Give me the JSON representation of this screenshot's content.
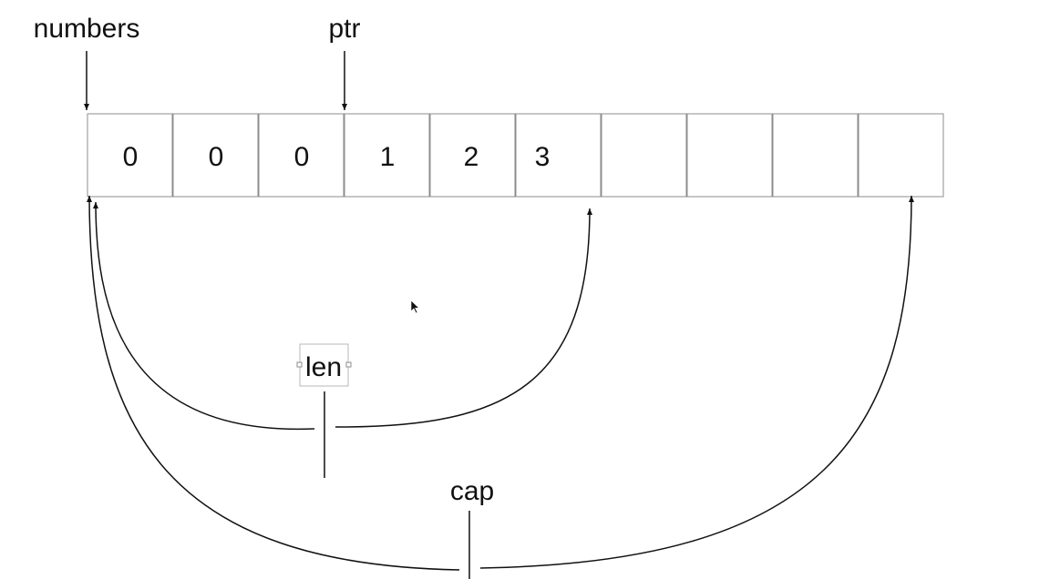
{
  "labels": {
    "numbers": "numbers",
    "ptr": "ptr",
    "len": "len",
    "cap": "cap"
  },
  "cells": [
    "0",
    "0",
    "0",
    "1",
    "2",
    "3",
    "",
    "",
    "",
    ""
  ],
  "colors": {
    "ink": "#111111",
    "cell_border": "#8c8c8c",
    "selection_box": "#b8b8b8"
  },
  "icons": {
    "cursor": "mouse-pointer-icon"
  }
}
